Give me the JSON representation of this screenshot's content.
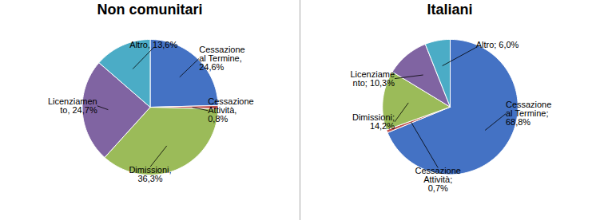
{
  "chart_data": [
    {
      "type": "pie",
      "title": "Non comunitari",
      "values": [
        24.6,
        0.8,
        36.3,
        24.7,
        13.6
      ],
      "value_labels": [
        "Cessazione\nal Termine,\n24,6%",
        "Cessazione\nAttività,\n0,8%",
        "Dimissioni,\n36,3%",
        "Licenziamen\nto, 24,7%",
        "Altro, 13,6%"
      ],
      "colors": [
        "#4472C4",
        "#C0504D",
        "#9BBB59",
        "#8064A2",
        "#4BACC6"
      ],
      "data_labels": true
    },
    {
      "type": "pie",
      "title": "Italiani",
      "values": [
        68.8,
        0.7,
        14.2,
        10.3,
        6.0
      ],
      "value_labels": [
        "Cessazione\nal Termine;\n68,8%",
        "Cessazione\nAttività;\n0,7%",
        "Dimissioni;\n14,2%",
        "Licenziame\nnto; 10,3%",
        "Altro; 6,0%"
      ],
      "colors": [
        "#4472C4",
        "#C0504D",
        "#9BBB59",
        "#8064A2",
        "#4BACC6"
      ],
      "data_labels": true
    }
  ]
}
